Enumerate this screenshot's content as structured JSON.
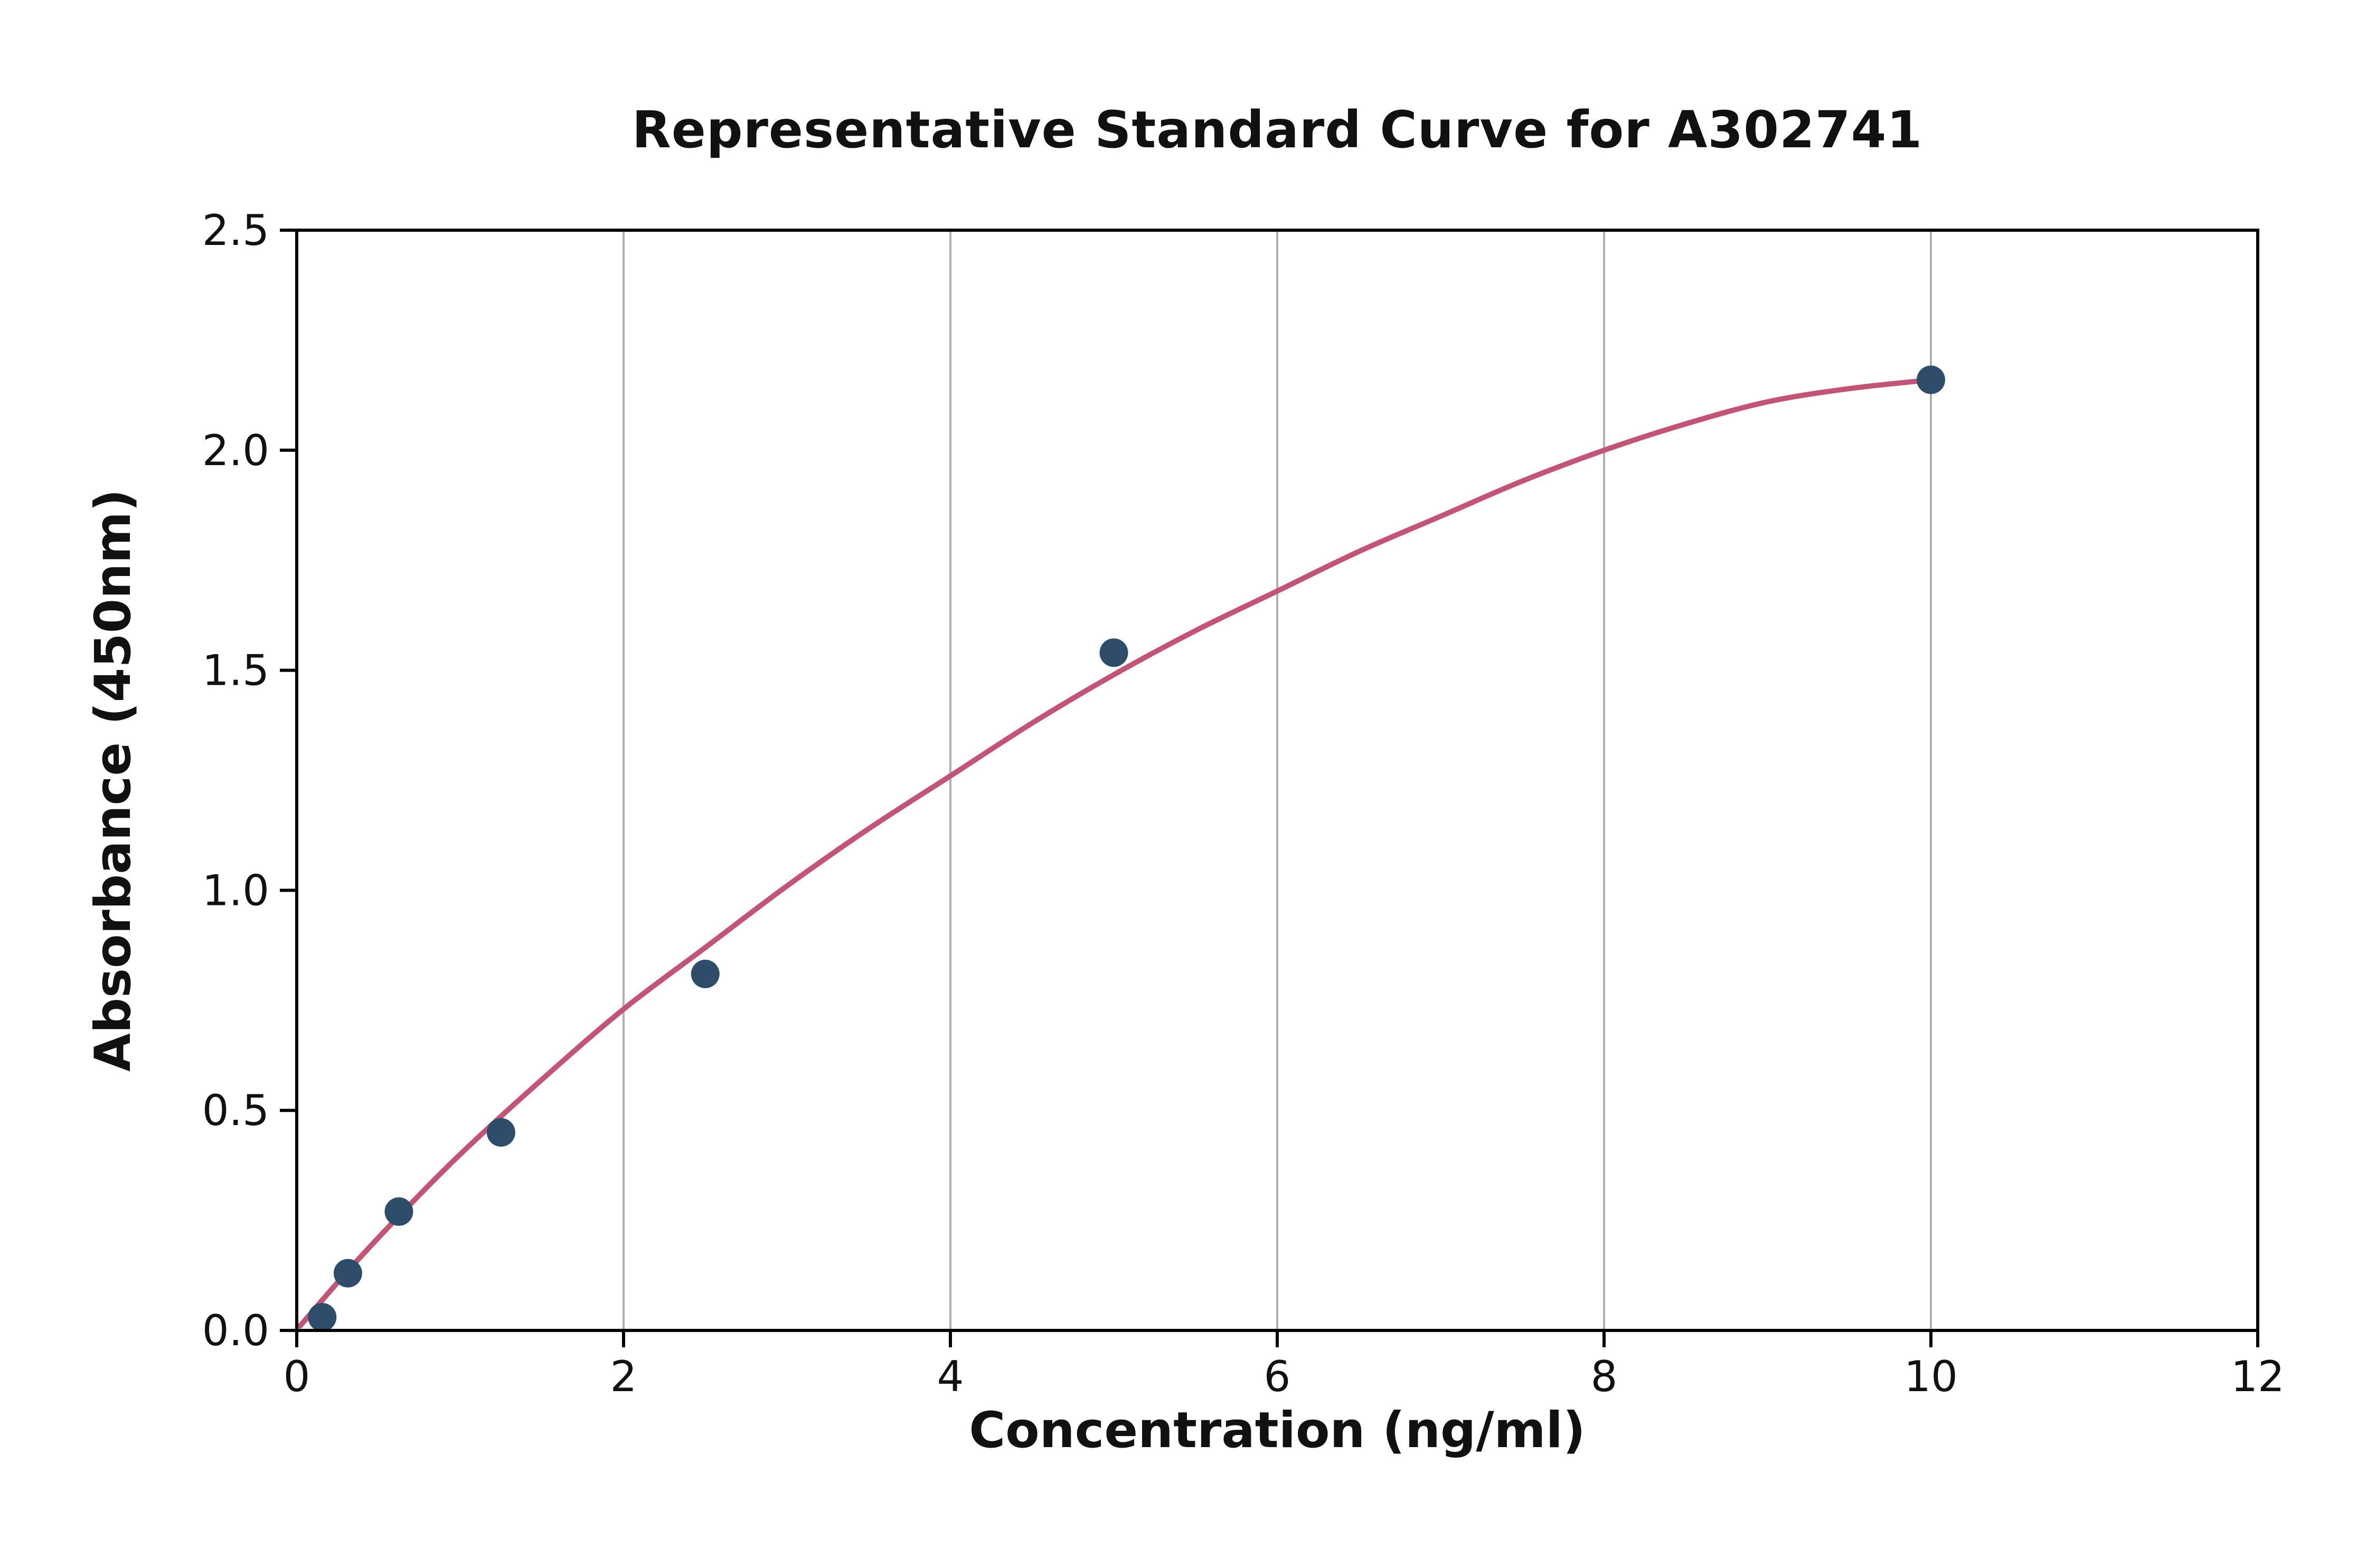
{
  "chart_data": {
    "type": "scatter",
    "title": "Representative Standard Curve for A302741",
    "xlabel": "Concentration (ng/ml)",
    "ylabel": "Absorbance (450nm)",
    "xlim": [
      0,
      12
    ],
    "ylim": [
      0,
      2.5
    ],
    "x_ticks": [
      0,
      2,
      4,
      6,
      8,
      10,
      12
    ],
    "x_tick_labels": [
      "0",
      "2",
      "4",
      "6",
      "8",
      "10",
      "12"
    ],
    "y_ticks": [
      0,
      0.5,
      1.0,
      1.5,
      2.0,
      2.5
    ],
    "y_tick_labels": [
      "0.0",
      "0.5",
      "1.0",
      "1.5",
      "2.0",
      "2.5"
    ],
    "grid": "vertical-only",
    "legend": "none",
    "series": [
      {
        "name": "standard-points",
        "type": "scatter",
        "color": "#2e4d6b",
        "points": [
          [
            0.156,
            0.03
          ],
          [
            0.313,
            0.13
          ],
          [
            0.625,
            0.27
          ],
          [
            1.25,
            0.45
          ],
          [
            2.5,
            0.81
          ],
          [
            5.0,
            1.54
          ],
          [
            10.0,
            2.16
          ]
        ]
      },
      {
        "name": "fit-curve",
        "type": "line",
        "color": "#c25576",
        "points": [
          [
            0.02,
            0.01
          ],
          [
            0.3,
            0.13
          ],
          [
            0.6,
            0.25
          ],
          [
            1.0,
            0.4
          ],
          [
            1.5,
            0.57
          ],
          [
            2.0,
            0.73
          ],
          [
            2.5,
            0.87
          ],
          [
            3.0,
            1.01
          ],
          [
            3.5,
            1.14
          ],
          [
            4.0,
            1.26
          ],
          [
            4.5,
            1.38
          ],
          [
            5.0,
            1.49
          ],
          [
            5.5,
            1.59
          ],
          [
            6.0,
            1.68
          ],
          [
            6.5,
            1.77
          ],
          [
            7.0,
            1.85
          ],
          [
            7.5,
            1.93
          ],
          [
            8.0,
            2.0
          ],
          [
            8.5,
            2.06
          ],
          [
            9.0,
            2.11
          ],
          [
            9.5,
            2.14
          ],
          [
            10.0,
            2.16
          ]
        ]
      }
    ],
    "colors": {
      "marker": "#2e4d6b",
      "curve": "#c25576",
      "grid": "#b0b0b0",
      "frame": "#000000",
      "background": "#ffffff"
    }
  }
}
